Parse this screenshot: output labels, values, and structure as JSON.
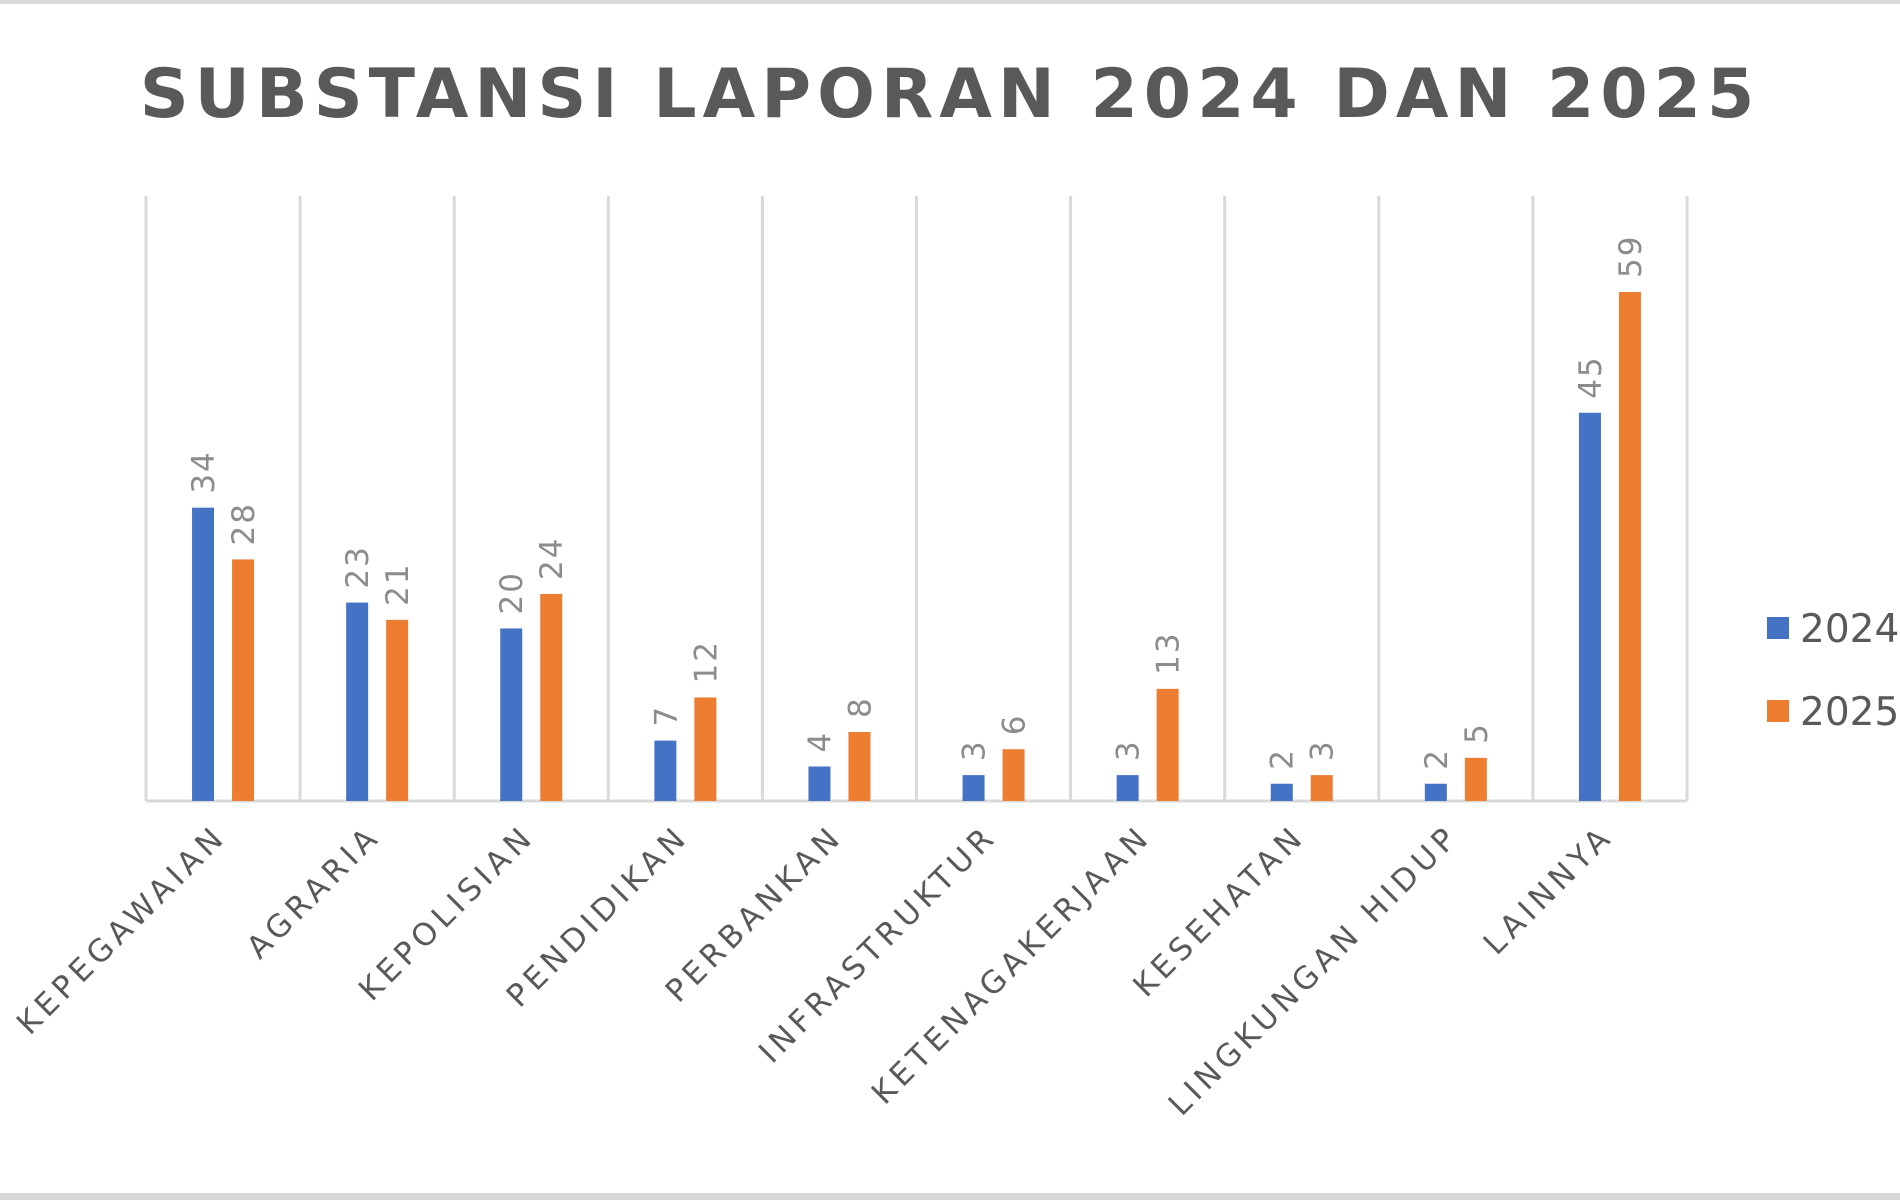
{
  "chart_data": {
    "type": "bar",
    "title": "SUBSTANSI LAPORAN 2024 DAN 2025",
    "xlabel": "",
    "ylabel": "",
    "ylim": [
      0,
      63
    ],
    "grid": "vertical",
    "legend_position": "right",
    "categories": [
      "KEPEGAWAIAN",
      "AGRARIA",
      "KEPOLISIAN",
      "PENDIDIKAN",
      "PERBANKAN",
      "INFRASTRUKTUR",
      "KETENAGAKERJAAN",
      "KESEHATAN",
      "LINGKUNGAN HIDUP",
      "LAINNYA"
    ],
    "series": [
      {
        "name": "2024",
        "color": "#4472c4",
        "values": [
          34,
          23,
          20,
          7,
          4,
          3,
          3,
          2,
          2,
          45
        ]
      },
      {
        "name": "2025",
        "color": "#ed7d31",
        "values": [
          28,
          21,
          24,
          12,
          8,
          6,
          13,
          3,
          5,
          59
        ]
      }
    ]
  }
}
